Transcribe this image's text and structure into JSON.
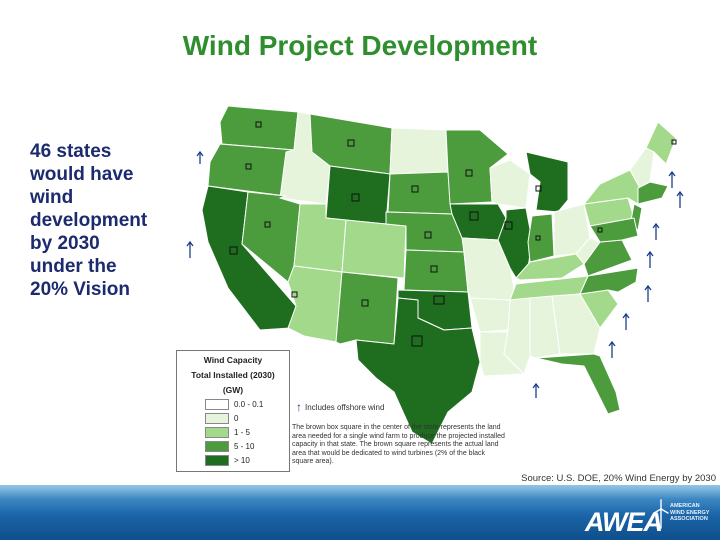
{
  "slide": {
    "title": "Wind Project Development",
    "side_text_lines": [
      "46 states",
      "would have",
      "wind",
      "development",
      "by 2030",
      "under the",
      "20% Vision"
    ]
  },
  "legend": {
    "title_lines": [
      "Wind Capacity",
      "Total Installed (2030)",
      "(GW)"
    ],
    "items": [
      {
        "label": "0.0 - 0.1",
        "color": "#ffffff"
      },
      {
        "label": "0",
        "color": "#e6f4dc"
      },
      {
        "label": "1 - 5",
        "color": "#a3d98a"
      },
      {
        "label": "5 - 10",
        "color": "#4c9c3d"
      },
      {
        "label": "> 10",
        "color": "#1f6e1f"
      }
    ]
  },
  "offshore_note": "Includes offshore wind",
  "footnote": "The brown box square in the center of the state represents the land area needed for a single wind farm to produce the projected installed capacity in that state. The brown square represents the actual land area that would be dedicated to wind turbines (2% of the black square area).",
  "source": "Source: U.S. DOE, 20% Wind Energy by 2030",
  "footer": {
    "logo_text": "AWEA",
    "logo_sub": [
      "AMERICAN",
      "WIND ENERGY",
      "ASSOCIATION"
    ]
  },
  "colors": {
    "title": "#2f8f2f",
    "side_text": "#1c2a6e",
    "vlight": "#e6f4dc",
    "light": "#a3d98a",
    "medium": "#4c9c3d",
    "dark": "#1f6e1f",
    "offshore_arrow": "#1c3f8a"
  }
}
